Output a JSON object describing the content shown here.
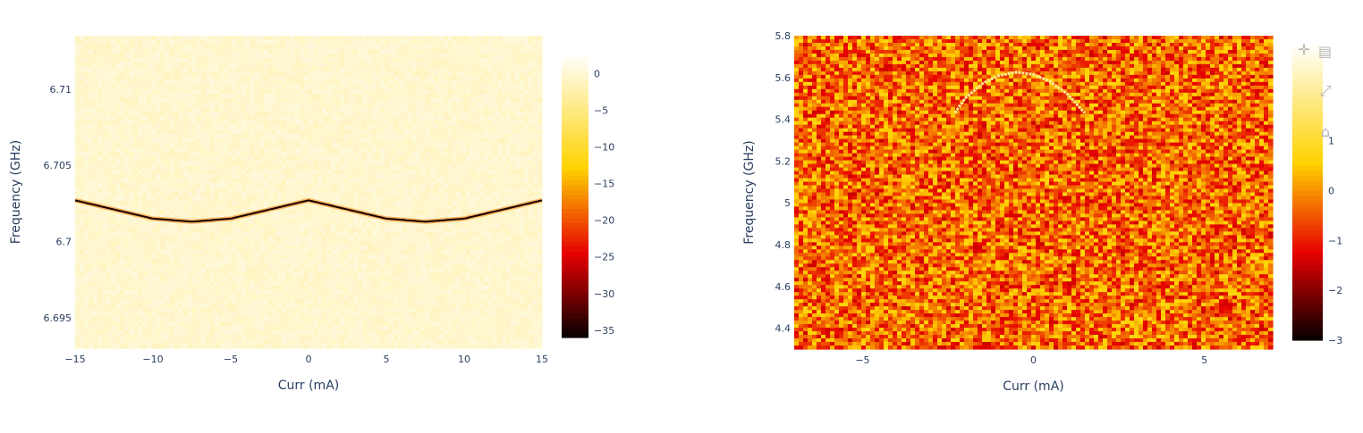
{
  "chart_data": [
    {
      "type": "heatmap",
      "title": "",
      "xlabel": "Curr (mA)",
      "ylabel": "Frequency (GHz)",
      "xlim": [
        -15,
        15
      ],
      "ylim": [
        6.693,
        6.7135
      ],
      "x_ticks": [
        -15,
        -10,
        -5,
        0,
        5,
        10,
        15
      ],
      "x_tick_labels": [
        "−15",
        "−10",
        "−5",
        "0",
        "5",
        "10",
        "15"
      ],
      "y_ticks": [
        6.695,
        6.7,
        6.705,
        6.71
      ],
      "y_tick_labels": [
        "6.695",
        "6.7",
        "6.705",
        "6.71"
      ],
      "colorscale": "Hot",
      "zlim": [
        -36,
        3
      ],
      "colorbar_ticks": [
        0,
        -5,
        -10,
        -15,
        -20,
        -25,
        -30,
        -35
      ],
      "colorbar_tick_labels": [
        "0",
        "−5",
        "−10",
        "−15",
        "−20",
        "−25",
        "−30",
        "−35"
      ],
      "background_level": 0,
      "resonance": {
        "x": [
          -15,
          -12.5,
          -10,
          -7.5,
          -5,
          -2.5,
          0,
          2.5,
          5,
          7.5,
          10,
          12.5,
          15
        ],
        "y": [
          6.7027,
          6.7021,
          6.7015,
          6.7013,
          6.7015,
          6.7021,
          6.7027,
          6.7021,
          6.7015,
          6.7013,
          6.7015,
          6.7021,
          6.7027
        ],
        "depth": -35
      }
    },
    {
      "type": "heatmap",
      "title": "",
      "xlabel": "Curr (mA)",
      "ylabel": "Frequency (GHz)",
      "xlim": [
        -7,
        7
      ],
      "ylim": [
        4.3,
        5.8
      ],
      "x_ticks": [
        -5,
        0,
        5
      ],
      "x_tick_labels": [
        "−5",
        "0",
        "5"
      ],
      "y_ticks": [
        4.4,
        4.6,
        4.8,
        5,
        5.2,
        5.4,
        5.6,
        5.8
      ],
      "y_tick_labels": [
        "4.4",
        "4.6",
        "4.8",
        "5",
        "5.2",
        "5.4",
        "5.6",
        "5.8"
      ],
      "colorscale": "Hot",
      "zlim": [
        -3,
        3
      ],
      "colorbar_ticks": [
        1,
        0,
        -1,
        -2,
        -3
      ],
      "colorbar_tick_labels": [
        "1",
        "0",
        "−1",
        "−2",
        "−3"
      ],
      "background_level": -0.3,
      "qubit_arc": {
        "x": [
          -2.3,
          -2,
          -1.5,
          -1,
          -0.5,
          0,
          0.5,
          1,
          1.5
        ],
        "y": [
          5.43,
          5.5,
          5.57,
          5.61,
          5.625,
          5.615,
          5.58,
          5.52,
          5.43
        ],
        "level": 2
      }
    }
  ],
  "modebar": {
    "icons": [
      "pan-icon",
      "save-icon",
      "autoscale-icon",
      "home-icon"
    ],
    "glyphs": [
      "✛",
      "▤",
      "⤢",
      "⌂"
    ]
  }
}
